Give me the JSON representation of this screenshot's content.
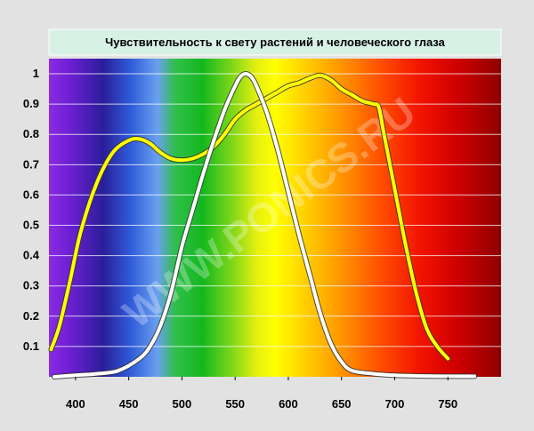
{
  "chart_data": {
    "type": "line",
    "title": "Чувствительность к свету растений и человеческого глаза",
    "xlabel": "",
    "ylabel": "",
    "xlim": [
      375,
      800
    ],
    "ylim": [
      0,
      1.05
    ],
    "x_ticks": [
      400,
      450,
      500,
      550,
      600,
      650,
      700,
      750
    ],
    "x_tick_labels": [
      "400",
      "450",
      "500",
      "550",
      "600",
      "650",
      "700",
      "750"
    ],
    "y_ticks": [
      0.1,
      0.2,
      0.3,
      0.4,
      0.5,
      0.6,
      0.7,
      0.8,
      0.9,
      1
    ],
    "y_tick_labels": [
      "0.1",
      "0.2",
      "0.3",
      "0.4",
      "0.5",
      "0.6",
      "0.7",
      "0.8",
      "0.9",
      "1"
    ],
    "grid": true,
    "legend": "none",
    "background": "visible spectrum gradient (violet to dark red)",
    "watermark": "WWW.PONICS.RU",
    "series": [
      {
        "color": "#ffff00",
        "x": [
          377,
          385,
          395,
          405,
          420,
          435,
          450,
          460,
          470,
          480,
          490,
          500,
          510,
          520,
          530,
          540,
          550,
          560,
          570,
          580,
          590,
          600,
          610,
          620,
          630,
          640,
          650,
          660,
          670,
          680,
          685,
          690,
          700,
          710,
          720,
          730,
          740,
          750
        ],
        "y": [
          0.09,
          0.17,
          0.32,
          0.48,
          0.64,
          0.74,
          0.78,
          0.785,
          0.77,
          0.74,
          0.72,
          0.715,
          0.72,
          0.735,
          0.76,
          0.8,
          0.85,
          0.88,
          0.9,
          0.92,
          0.94,
          0.96,
          0.97,
          0.985,
          0.995,
          0.98,
          0.95,
          0.93,
          0.91,
          0.9,
          0.89,
          0.8,
          0.62,
          0.44,
          0.28,
          0.16,
          0.1,
          0.06
        ]
      },
      {
        "color": "#ffffff",
        "x": [
          380,
          400,
          420,
          440,
          460,
          470,
          480,
          490,
          500,
          510,
          520,
          530,
          540,
          550,
          555,
          560,
          565,
          570,
          580,
          590,
          600,
          610,
          620,
          630,
          640,
          650,
          660,
          680,
          700,
          720,
          750,
          775
        ],
        "y": [
          0.0,
          0.005,
          0.01,
          0.02,
          0.06,
          0.1,
          0.17,
          0.28,
          0.43,
          0.55,
          0.67,
          0.78,
          0.88,
          0.96,
          0.99,
          1.0,
          0.99,
          0.96,
          0.87,
          0.75,
          0.61,
          0.47,
          0.34,
          0.21,
          0.11,
          0.05,
          0.02,
          0.01,
          0.005,
          0.003,
          0.002,
          0.002
        ]
      }
    ]
  }
}
